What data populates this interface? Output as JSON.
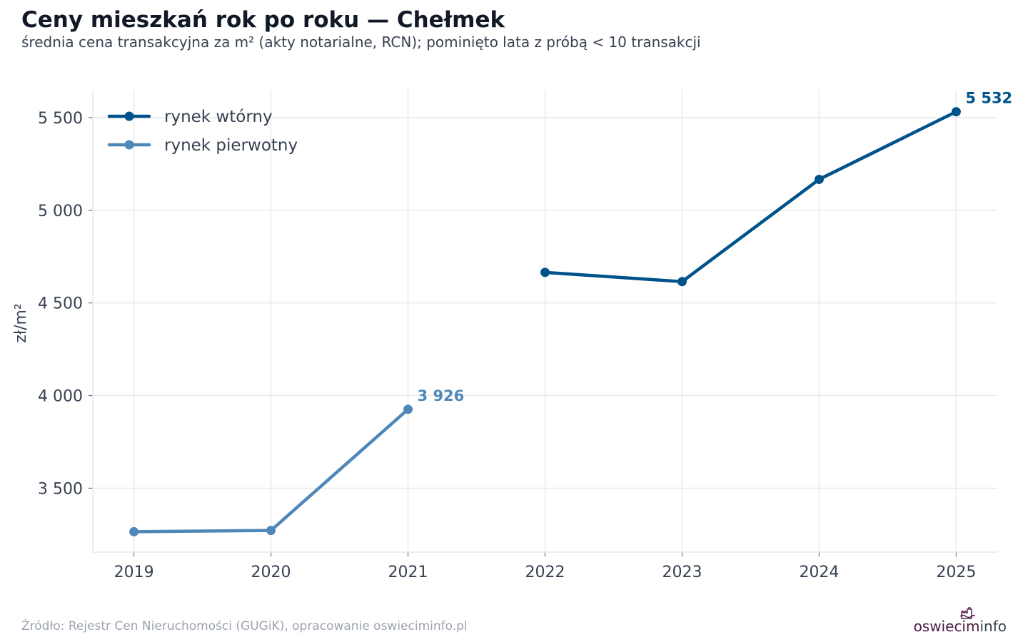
{
  "title": "Ceny mieszkań rok po roku — Chełmek",
  "subtitle": "średnia cena transakcyjna za m² (akty notarialne, RCN); pominięto lata z próbą < 10 transakcji",
  "source": "Źródło: Rejestr Cen Nieruchomości (GUGiK), opracowanie oswieciminfo.pl",
  "brand": {
    "part1": "oswiecim",
    "part2": "info"
  },
  "chart_data": {
    "type": "line",
    "title": "Ceny mieszkań rok po roku — Chełmek",
    "subtitle": "średnia cena transakcyjna za m² (akty notarialne, RCN); pominięto lata z próbą < 10 transakcji",
    "xlabel": "",
    "ylabel": "zł/m²",
    "x": [
      2019,
      2020,
      2021,
      2022,
      2023,
      2024,
      2025
    ],
    "x_tick_labels": [
      "2019",
      "2020",
      "2021",
      "2022",
      "2023",
      "2024",
      "2025"
    ],
    "y_ticks": [
      3500,
      4000,
      4500,
      5000,
      5500
    ],
    "y_tick_labels": [
      "3 500",
      "4 000",
      "4 500",
      "5 000",
      "5 500"
    ],
    "ylim": [
      3155,
      5650
    ],
    "xlim": [
      2018.7,
      2025.3
    ],
    "grid": true,
    "legend_position": "top-left",
    "series": [
      {
        "name": "rynek wtórny",
        "color": "#00538a",
        "values": [
          null,
          null,
          null,
          4665,
          4615,
          5167,
          5532
        ],
        "end_label": "5 532"
      },
      {
        "name": "rynek pierwotny",
        "color": "#4f88b8",
        "values": [
          3265,
          3272,
          3926,
          null,
          null,
          null,
          null
        ],
        "end_label": "3 926"
      }
    ]
  }
}
